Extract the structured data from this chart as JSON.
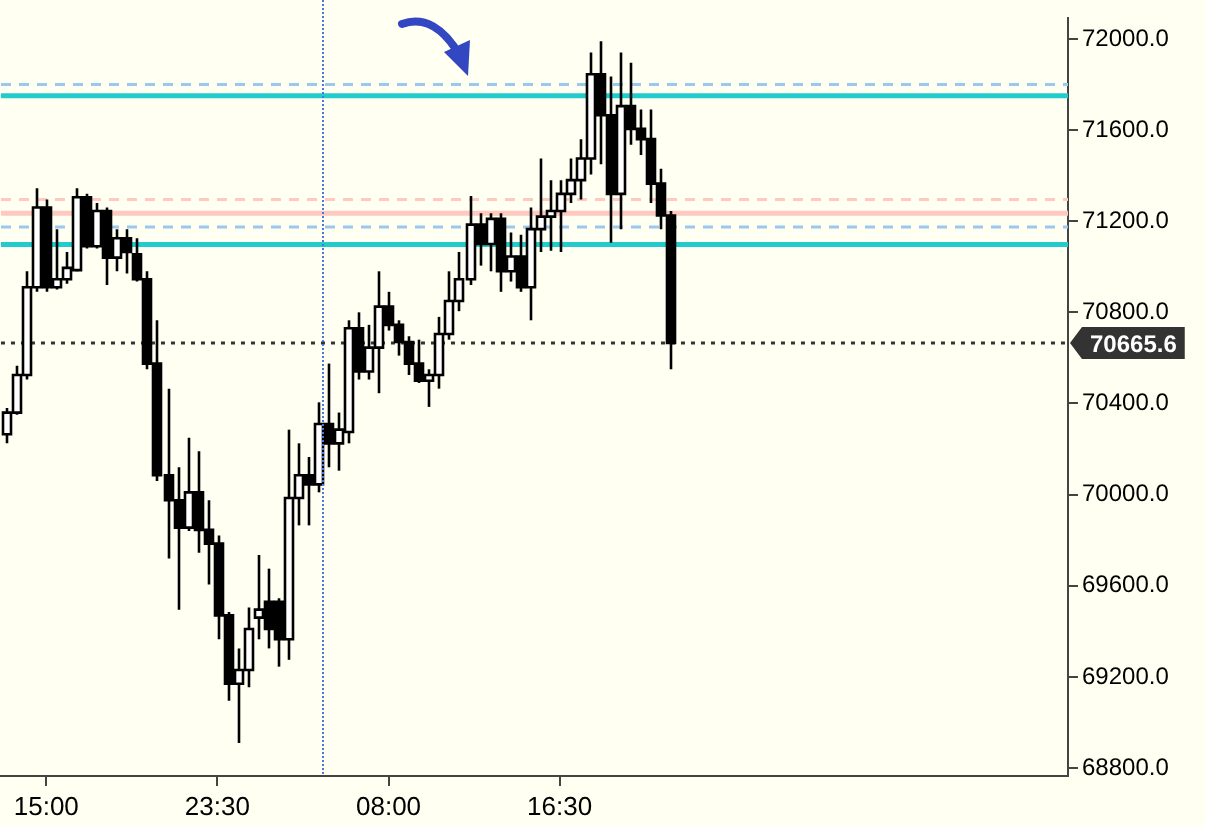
{
  "chart_data": {
    "type": "candlestick",
    "color": "#000000",
    "colors": [
      "#ffffff",
      "#ffffff",
      "#ffffff",
      "#ffffff",
      "#000000",
      "#ffffff",
      "#ffffff",
      "#ffffff",
      "#000000",
      "#ffffff",
      "#000000",
      "#ffffff",
      "#000000",
      "#000000",
      "#000000",
      "#000000",
      "#000000",
      "#000000",
      "#ffffff",
      "#000000",
      "#000000",
      "#000000",
      "#000000",
      "#ffffff",
      "#ffffff",
      "#ffffff",
      "#000000",
      "#000000",
      "#ffffff",
      "#ffffff",
      "#000000",
      "#ffffff",
      "#000000",
      "#ffffff",
      "#ffffff",
      "#000000",
      "#ffffff",
      "#ffffff",
      "#000000",
      "#000000",
      "#000000",
      "#000000",
      "#ffffff",
      "#ffffff",
      "#ffffff",
      "#ffffff",
      "#ffffff",
      "#000000",
      "#ffffff",
      "#000000",
      "#ffffff",
      "#000000",
      "#ffffff",
      "#ffffff",
      "#ffffff",
      "#ffffff",
      "#ffffff",
      "#ffffff",
      "#ffffff",
      "#000000",
      "#000000",
      "#ffffff",
      "#000000",
      "#000000",
      "#000000",
      "#000000",
      "#000000",
      null,
      null,
      null,
      null,
      null,
      null,
      null,
      null,
      null,
      null,
      null,
      null,
      null,
      null,
      null,
      null,
      null,
      null,
      null,
      null,
      null,
      null,
      null,
      null,
      null,
      null,
      null,
      null,
      null,
      null,
      null,
      null,
      null,
      null,
      null,
      null,
      null,
      null,
      null
    ],
    "categories": [
      null,
      null,
      null,
      null,
      "15:00",
      null,
      null,
      null,
      null,
      null,
      null,
      null,
      null,
      null,
      null,
      null,
      null,
      null,
      null,
      null,
      null,
      "23:30",
      null,
      null,
      null,
      null,
      null,
      null,
      null,
      null,
      null,
      null,
      null,
      null,
      null,
      null,
      null,
      null,
      "08:00",
      null,
      null,
      null,
      null,
      null,
      null,
      null,
      null,
      null,
      null,
      null,
      null,
      null,
      null,
      null,
      null,
      "16:30",
      null,
      null,
      null,
      null,
      null,
      null,
      null,
      null,
      null,
      null,
      null,
      null,
      null,
      null,
      null,
      null,
      null,
      null,
      null,
      null,
      null,
      null,
      null,
      null,
      null,
      null,
      null,
      null,
      null,
      null,
      null,
      null,
      null,
      null,
      null,
      null,
      null,
      null,
      null,
      null,
      null,
      null,
      null,
      null,
      null,
      null,
      null,
      null,
      null,
      null
    ],
    "ohlc": [
      [
        70265,
        70380,
        70225,
        70360
      ],
      [
        70360,
        70565,
        70350,
        70525
      ],
      [
        70525,
        70980,
        70505,
        70910
      ],
      [
        70910,
        71345,
        70890,
        71260
      ],
      [
        71260,
        71295,
        70890,
        70910
      ],
      [
        70910,
        71165,
        70900,
        70945
      ],
      [
        70945,
        71065,
        70925,
        70995
      ],
      [
        70985,
        71345,
        70980,
        71305
      ],
      [
        71305,
        71320,
        71080,
        71090
      ],
      [
        71090,
        71280,
        71080,
        71245
      ],
      [
        71245,
        71260,
        70920,
        71040
      ],
      [
        71040,
        71165,
        70980,
        71125
      ],
      [
        71125,
        71165,
        70970,
        71065
      ],
      [
        71055,
        71125,
        70935,
        70945
      ],
      [
        70945,
        70980,
        70550,
        70575
      ],
      [
        70575,
        70765,
        70060,
        70085
      ],
      [
        70085,
        70465,
        69720,
        69975
      ],
      [
        69975,
        70120,
        69495,
        69855
      ],
      [
        69855,
        70250,
        69840,
        70010
      ],
      [
        70010,
        70190,
        69745,
        69845
      ],
      [
        69845,
        69975,
        69605,
        69785
      ],
      [
        69785,
        69820,
        69365,
        69470
      ],
      [
        69470,
        69485,
        69095,
        69170
      ],
      [
        69170,
        69325,
        68910,
        69230
      ],
      [
        69230,
        69505,
        69155,
        69410
      ],
      [
        69460,
        69735,
        69365,
        69495
      ],
      [
        69530,
        69675,
        69325,
        69410
      ],
      [
        69530,
        69545,
        69245,
        69365
      ],
      [
        69365,
        70285,
        69275,
        69985
      ],
      [
        69985,
        70225,
        69865,
        70085
      ],
      [
        70085,
        70165,
        69865,
        70045
      ],
      [
        70045,
        70405,
        70010,
        70310
      ],
      [
        70310,
        70575,
        70120,
        70225
      ],
      [
        70225,
        70360,
        70105,
        70285
      ],
      [
        70275,
        70765,
        70225,
        70730
      ],
      [
        70730,
        70800,
        70505,
        70540
      ],
      [
        70540,
        70745,
        70505,
        70645
      ],
      [
        70645,
        70980,
        70445,
        70825
      ],
      [
        70825,
        70890,
        70720,
        70745
      ],
      [
        70745,
        70765,
        70610,
        70670
      ],
      [
        70670,
        70695,
        70525,
        70575
      ],
      [
        70575,
        70680,
        70490,
        70500
      ],
      [
        70500,
        70550,
        70385,
        70525
      ],
      [
        70525,
        70780,
        70465,
        70705
      ],
      [
        70705,
        70980,
        70680,
        70850
      ],
      [
        70850,
        71065,
        70805,
        70945
      ],
      [
        70945,
        71310,
        70920,
        71185
      ],
      [
        71185,
        71235,
        71005,
        71100
      ],
      [
        71100,
        71235,
        70980,
        71210
      ],
      [
        71210,
        71235,
        70890,
        70980
      ],
      [
        70980,
        71150,
        70935,
        71045
      ],
      [
        71045,
        71140,
        70890,
        70910
      ],
      [
        70910,
        71260,
        70765,
        71165
      ],
      [
        71165,
        71475,
        71065,
        71220
      ],
      [
        71220,
        71380,
        71070,
        71245
      ],
      [
        71245,
        71380,
        71065,
        71320
      ],
      [
        71320,
        71475,
        71280,
        71380
      ],
      [
        71380,
        71560,
        71295,
        71475
      ],
      [
        71475,
        71940,
        71405,
        71845
      ],
      [
        71845,
        71990,
        71450,
        71665
      ],
      [
        71665,
        71835,
        71105,
        71320
      ],
      [
        71320,
        71940,
        71165,
        71705
      ],
      [
        71705,
        71895,
        71535,
        71605
      ],
      [
        71605,
        71690,
        71490,
        71560
      ],
      [
        71560,
        71690,
        71280,
        71365
      ],
      [
        71365,
        71430,
        71165,
        71225
      ],
      [
        71225,
        71245,
        70550,
        70665.6
      ],
      null,
      null,
      null,
      null,
      null,
      null,
      null,
      null,
      null,
      null,
      null,
      null,
      null,
      null,
      null,
      null,
      null,
      null,
      null,
      null,
      null,
      null,
      null,
      null,
      null,
      null,
      null,
      null,
      null,
      null,
      null,
      null,
      null,
      null,
      null,
      null,
      null,
      null,
      null
    ],
    "ylim": [
      68765,
      72090
    ],
    "yticks": [
      {
        "value": 68800,
        "label": "68800.0"
      },
      {
        "value": 69200,
        "label": "69200.0"
      },
      {
        "value": 69600,
        "label": "69600.0"
      },
      {
        "value": 70000,
        "label": "70000.0"
      },
      {
        "value": 70400,
        "label": "70400.0"
      },
      {
        "value": 70800,
        "label": "70800.0"
      },
      {
        "value": 71200,
        "label": "71200.0"
      },
      {
        "value": 71600,
        "label": "71600.0"
      },
      {
        "value": 72000,
        "label": "72000.0"
      }
    ],
    "ref_lines": [
      {
        "axis": "y",
        "value": 71800,
        "color": "#99c8f0",
        "line_style": "dashed"
      },
      {
        "axis": "y",
        "value": 71750,
        "color": "#22cccc",
        "line_style": "solid"
      },
      {
        "axis": "y",
        "value": 71295,
        "color": "#ffc8c0",
        "line_style": "dashed"
      },
      {
        "axis": "y",
        "value": 71235,
        "color": "#ffc8c0",
        "line_style": "solid"
      },
      {
        "axis": "y",
        "value": 71175,
        "color": "#99c8f0",
        "line_style": "dashed"
      },
      {
        "axis": "y",
        "value": 71098,
        "color": "#22cccc",
        "line_style": "solid"
      },
      {
        "axis": "y",
        "value": 70665.6,
        "label": "70665.6",
        "color": "#333333",
        "line_style": "dotted"
      }
    ]
  }
}
